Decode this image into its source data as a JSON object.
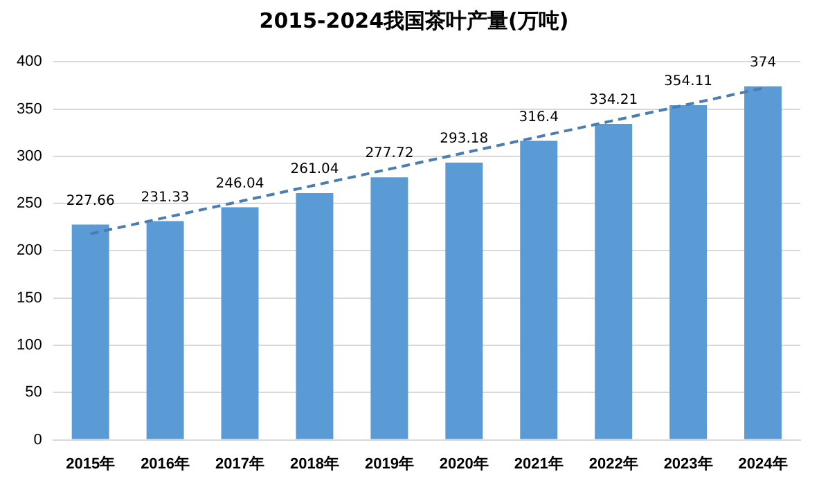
{
  "chart_data": {
    "type": "bar",
    "title": "2015-2024我国茶叶产量(万吨)",
    "categories": [
      "2015年",
      "2016年",
      "2017年",
      "2018年",
      "2019年",
      "2020年",
      "2021年",
      "2022年",
      "2023年",
      "2024年"
    ],
    "series": [
      {
        "color": "#5b9bd5",
        "values": [
          227.66,
          231.33,
          246.04,
          261.04,
          277.72,
          293.18,
          316.4,
          334.21,
          354.11,
          374
        ],
        "value_labels": [
          "227.66",
          "231.33",
          "246.04",
          "261.04",
          "277.72",
          "293.18",
          "316.4",
          "334.21",
          "354.11",
          "374"
        ]
      },
      {
        "type": "line",
        "color": "#4a7eb0",
        "x": [
          "2015年",
          "2024年"
        ],
        "values": [
          218,
          372
        ],
        "line_style": "dashed",
        "marker": "none"
      }
    ],
    "ylim": [
      0,
      400
    ],
    "yticks": [
      0,
      50,
      100,
      150,
      200,
      250,
      300,
      350,
      400
    ],
    "grid": "y",
    "legend": false
  }
}
